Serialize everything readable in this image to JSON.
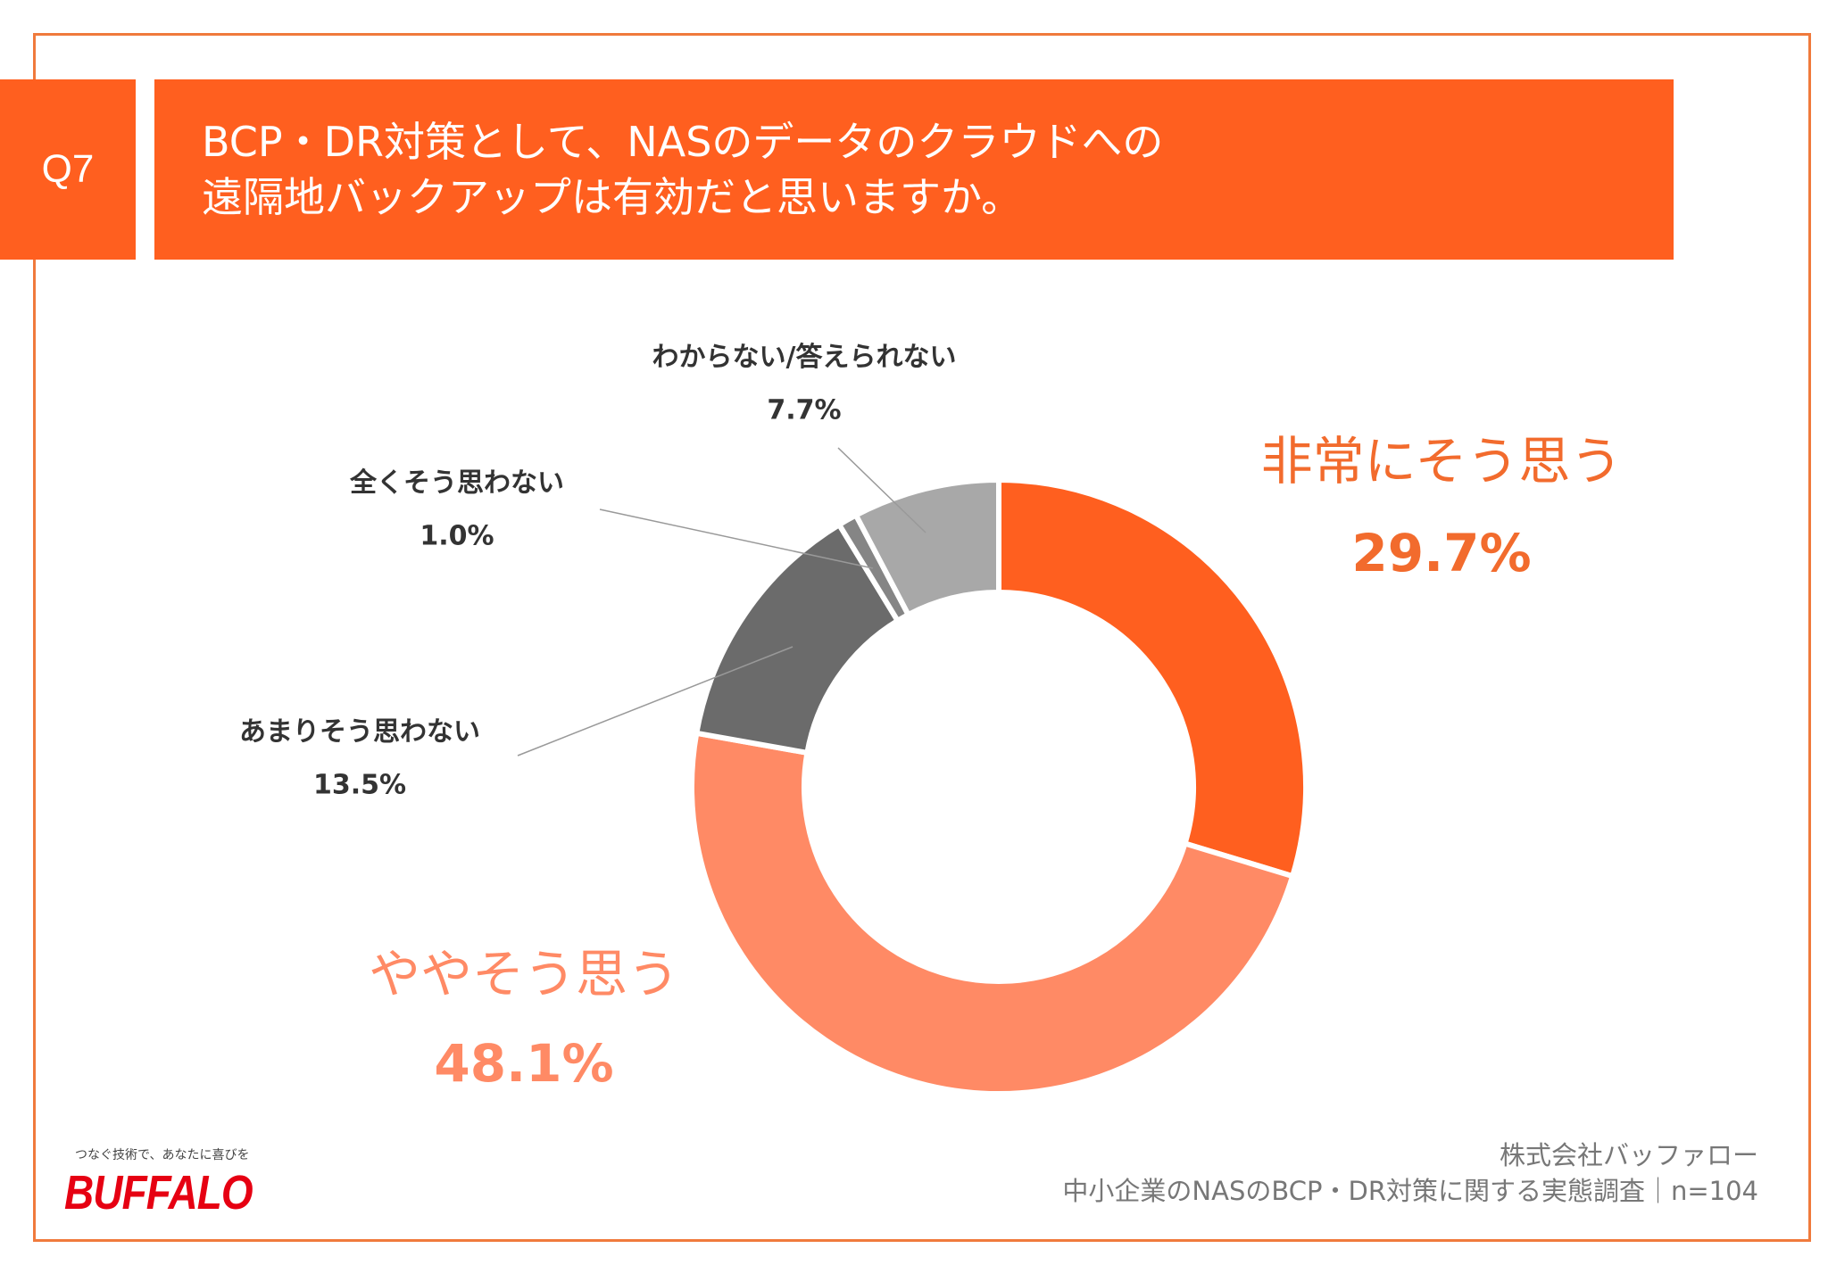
{
  "header": {
    "question_number": "Q7",
    "title_line1": "BCP・DR対策として、NASのデータのクラウドへの",
    "title_line2": "遠隔地バックアップは有効だと思いますか。"
  },
  "chart_data": {
    "type": "pie",
    "donut": true,
    "start": "top, clockwise",
    "slices": [
      {
        "label": "非常にそう思う",
        "value": 29.7,
        "value_label": "29.7%",
        "color": "#ff5f1f"
      },
      {
        "label": "ややそう思う",
        "value": 48.1,
        "value_label": "48.1%",
        "color": "#ff8a65"
      },
      {
        "label": "あまりそう思わない",
        "value": 13.5,
        "value_label": "13.5%",
        "color": "#6b6b6b"
      },
      {
        "label": "全くそう思わない",
        "value": 1.0,
        "value_label": "1.0%",
        "color": "#858585"
      },
      {
        "label": "わからない/答えられない",
        "value": 7.7,
        "value_label": "7.7%",
        "color": "#a8a8a8"
      }
    ]
  },
  "footer": {
    "company": "株式会社バッファロー",
    "source": "中小企業のNASのBCP・DR対策に関する実態調査｜n=104"
  },
  "logo": {
    "tagline": "つなぐ技術で、あなたに喜びを",
    "brand": "BUFFALO"
  },
  "colors": {
    "accent": "#ff5f1f",
    "frame": "#f07a3c",
    "logo_red": "#e60012"
  }
}
